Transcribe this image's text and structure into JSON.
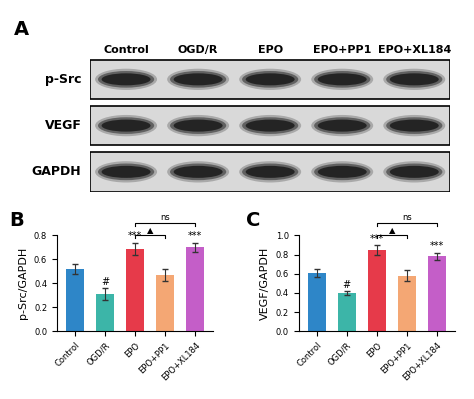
{
  "blot": {
    "label": "A",
    "columns": [
      "Control",
      "OGD/R",
      "EPO",
      "EPO+PP1",
      "EPO+XL184"
    ],
    "rows": [
      "p-Src",
      "VEGF",
      "GAPDH"
    ]
  },
  "chart_data": [
    {
      "label": "B",
      "type": "bar",
      "categories": [
        "Control",
        "OGD/R",
        "EPO",
        "EPO+PP1",
        "EPO+XL184"
      ],
      "values": [
        0.52,
        0.31,
        0.69,
        0.47,
        0.7
      ],
      "errors": [
        0.04,
        0.05,
        0.05,
        0.05,
        0.04
      ],
      "colors": [
        "#2e86c8",
        "#3cb5a8",
        "#e63a4a",
        "#f4a774",
        "#c45ec8"
      ],
      "ylabel": "p-Src/GAPDH",
      "ylim": [
        0,
        0.8
      ],
      "yticks": [
        {
          "value": 0,
          "label": "0.0"
        },
        0.2,
        0.4,
        0.6,
        0.8
      ],
      "annotations": [
        {
          "category": "OGD/R",
          "text": "#"
        },
        {
          "category": "EPO",
          "text": "***"
        },
        {
          "category": "EPO+XL184",
          "text": "***"
        }
      ],
      "comparisons": [
        {
          "from": "EPO",
          "to": "EPO+PP1",
          "text": "▲"
        },
        {
          "from": "EPO",
          "to": "EPO+XL184",
          "text": "ns"
        }
      ]
    },
    {
      "label": "C",
      "type": "bar",
      "categories": [
        "Control",
        "OGD/R",
        "EPO",
        "EPO+PP1",
        "EPO+XL184"
      ],
      "values": [
        0.61,
        0.4,
        0.85,
        0.58,
        0.78
      ],
      "errors": [
        0.04,
        0.02,
        0.05,
        0.06,
        0.04
      ],
      "colors": [
        "#2e86c8",
        "#3cb5a8",
        "#e63a4a",
        "#f4a774",
        "#c45ec8"
      ],
      "ylabel": "VEGF/GAPDH",
      "ylim": [
        0,
        1.0
      ],
      "yticks": [
        {
          "value": 0,
          "label": "0.0"
        },
        0.2,
        0.4,
        0.6,
        0.8,
        {
          "value": 1.0,
          "label": "1.0"
        }
      ],
      "annotations": [
        {
          "category": "OGD/R",
          "text": "#"
        },
        {
          "category": "EPO",
          "text": "***"
        },
        {
          "category": "EPO+XL184",
          "text": "***"
        }
      ],
      "comparisons": [
        {
          "from": "EPO",
          "to": "EPO+PP1",
          "text": "▲"
        },
        {
          "from": "EPO",
          "to": "EPO+XL184",
          "text": "ns"
        }
      ]
    }
  ]
}
